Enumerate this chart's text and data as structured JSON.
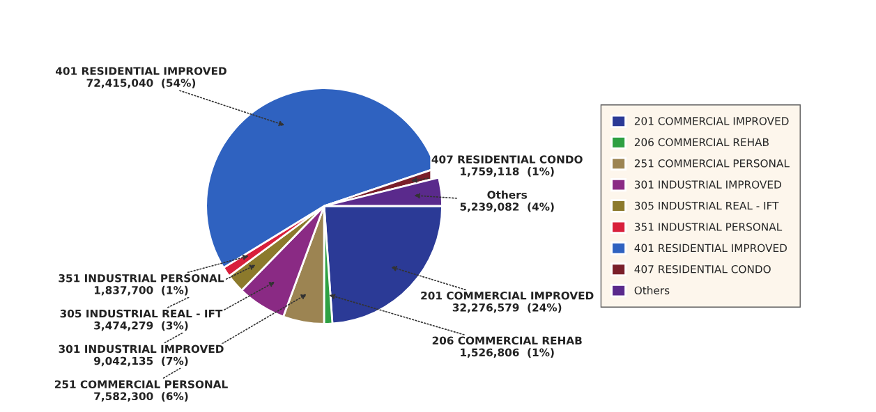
{
  "chart_data": {
    "type": "pie",
    "categories": [
      "201 COMMERCIAL IMPROVED",
      "206 COMMERCIAL REHAB",
      "251 COMMERCIAL PERSONAL",
      "301 INDUSTRIAL IMPROVED",
      "305 INDUSTRIAL REAL - IFT",
      "351 INDUSTRIAL PERSONAL",
      "401 RESIDENTIAL IMPROVED",
      "407 RESIDENTIAL CONDO",
      "Others"
    ],
    "values": [
      32276579,
      1526806,
      7582300,
      9042135,
      3474279,
      1837700,
      72415040,
      1759118,
      5239082
    ],
    "value_labels": [
      "32,276,579  (24%)",
      "1,526,806  (1%)",
      "7,582,300  (6%)",
      "9,042,135  (7%)",
      "3,474,279  (3%)",
      "1,837,700  (1%)",
      "72,415,040  (54%)",
      "1,759,118  (1%)",
      "5,239,082  (4%)"
    ],
    "colors": [
      "#2b3a96",
      "#2ea043",
      "#9c8452",
      "#8a2a84",
      "#8c7a2c",
      "#d8203c",
      "#2f62c0",
      "#7a1f2a",
      "#5a2a8c"
    ],
    "legend": "right"
  }
}
